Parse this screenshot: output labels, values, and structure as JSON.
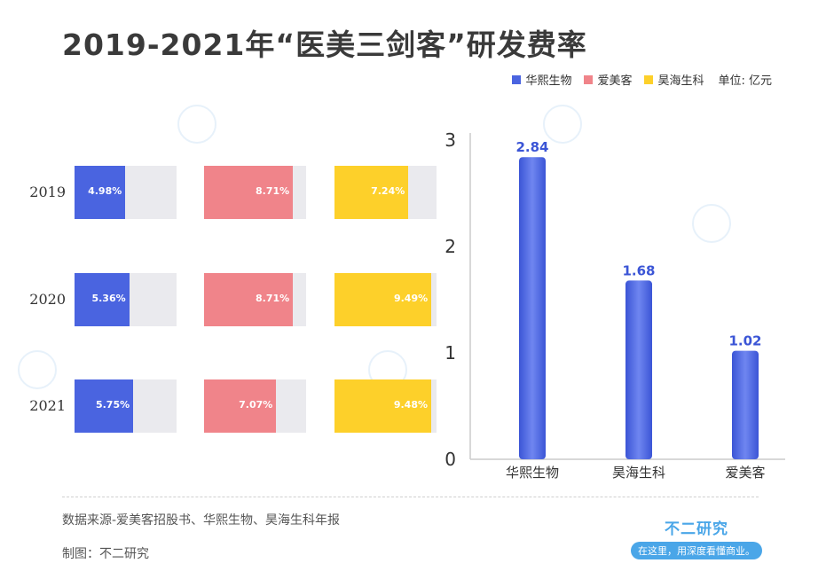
{
  "title": "2019-2021年“医美三剑客”研发费率",
  "legend": {
    "items": [
      {
        "label": "华熙生物",
        "color": "#4a64e0"
      },
      {
        "label": "爱美客",
        "color": "#f0848a"
      },
      {
        "label": "昊海生科",
        "color": "#fdd02a"
      }
    ],
    "unit": "单位: 亿元"
  },
  "chart_data": [
    {
      "type": "bar",
      "categories": [
        "2019",
        "2020",
        "2021"
      ],
      "series": [
        {
          "name": "华熙生物",
          "values": [
            4.98,
            5.36,
            5.75
          ],
          "labels": [
            "4.98%",
            "5.36%",
            "5.75%"
          ],
          "color": "#4a64e0"
        },
        {
          "name": "爱美客",
          "values": [
            8.71,
            8.71,
            7.07
          ],
          "labels": [
            "8.71%",
            "8.71%",
            "7.07%"
          ],
          "color": "#f0848a"
        },
        {
          "name": "昊海生科",
          "values": [
            7.24,
            9.49,
            9.48
          ],
          "labels": [
            "7.24%",
            "9.49%",
            "9.48%"
          ],
          "color": "#fdd02a"
        }
      ],
      "xmax": 10
    },
    {
      "type": "bar",
      "categories": [
        "华熙生物",
        "昊海生科",
        "爱美客"
      ],
      "values": [
        2.84,
        1.68,
        1.02
      ],
      "value_labels": [
        "2.84",
        "1.68",
        "1.02"
      ],
      "ylim": [
        0,
        3
      ],
      "yticks": [
        "0",
        "1",
        "2",
        "3"
      ],
      "color": "#4a64e0"
    }
  ],
  "footer": {
    "source": "数据来源-爱美客招股书、华熙生物、昊海生科年报",
    "credit": "制图：不二研究",
    "logo_name": "不二研究",
    "logo_tagline": "在这里，用深度看懂商业。"
  }
}
